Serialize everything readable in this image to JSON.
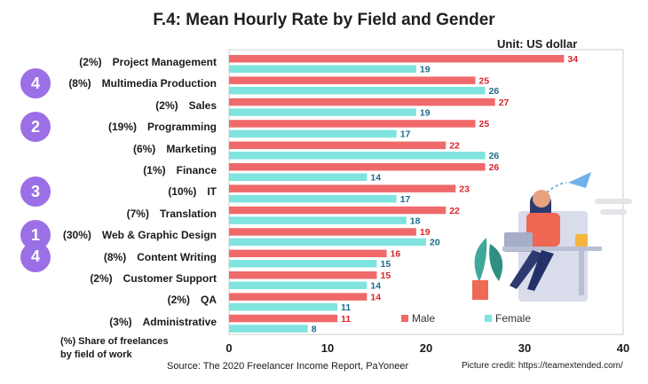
{
  "chart_data": {
    "type": "bar",
    "orientation": "horizontal",
    "title": "F.4: Mean Hourly Rate by Field and Gender",
    "unit_label": "Unit: US dollar",
    "categories": [
      "Project Management",
      "Multimedia Production",
      "Sales",
      "Programming",
      "Marketing",
      "Finance",
      "IT",
      "Translation",
      "Web & Graphic Design",
      "Content Writing",
      "Customer Support",
      "QA",
      "Administrative"
    ],
    "shares": [
      "(2%)",
      "(8%)",
      "(2%)",
      "(19%)",
      "(6%)",
      "(1%)",
      "(10%)",
      "(7%)",
      "(30%)",
      "(8%)",
      "(2%)",
      "(2%)",
      "(3%)"
    ],
    "series": [
      {
        "name": "Male",
        "color": "#f0696a",
        "label_color": "#d8262b",
        "values": [
          34,
          25,
          27,
          25,
          22,
          26,
          23,
          22,
          19,
          16,
          15,
          14,
          11
        ]
      },
      {
        "name": "Female",
        "color": "#7fe3de",
        "label_color": "#1c6b8f",
        "values": [
          19,
          26,
          19,
          17,
          26,
          14,
          17,
          18,
          20,
          15,
          14,
          11,
          8
        ]
      }
    ],
    "xlim": [
      0,
      40
    ],
    "xticks": [
      0,
      10,
      20,
      30,
      40
    ],
    "legend_position": "bottom-right",
    "badges": [
      {
        "category_index": 1,
        "label": "4"
      },
      {
        "category_index": 3,
        "label": "2"
      },
      {
        "category_index": 6,
        "label": "3"
      },
      {
        "category_index": 8,
        "label": "1"
      },
      {
        "category_index": 9,
        "label": "4"
      }
    ],
    "badge_color": "#9b6fe6",
    "share_note": [
      "(%) Share of freelances",
      "by field of work"
    ]
  },
  "source": "Source: The 2020 Freelancer Income Report, PaYoneer",
  "credit": "Picture credit: https://teamextended.com/"
}
